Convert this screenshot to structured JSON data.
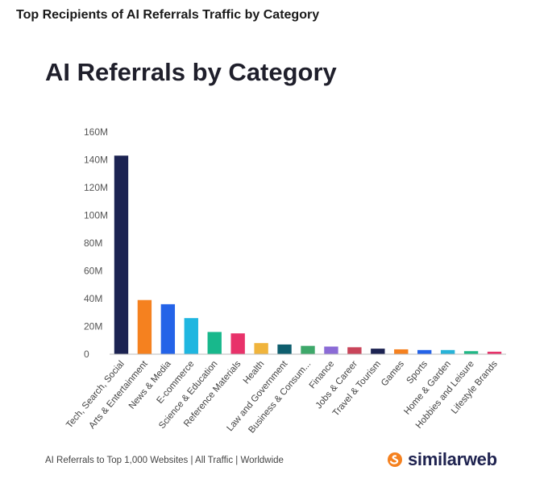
{
  "page": {
    "heading": "Top Recipients of AI Referrals Traffic by Category"
  },
  "chart_data": {
    "type": "bar",
    "title": "AI Referrals by Category",
    "xlabel": "",
    "ylabel": "",
    "ylim": [
      0,
      160
    ],
    "yticks": [
      {
        "value": 0,
        "label": "0"
      },
      {
        "value": 20,
        "label": "20M"
      },
      {
        "value": 40,
        "label": "40M"
      },
      {
        "value": 60,
        "label": "60M"
      },
      {
        "value": 80,
        "label": "80M"
      },
      {
        "value": 100,
        "label": "100M"
      },
      {
        "value": 120,
        "label": "120M"
      },
      {
        "value": 140,
        "label": "140M"
      },
      {
        "value": 160,
        "label": "160M"
      }
    ],
    "grid": false,
    "legend": "none",
    "categories": [
      "Tech, Search, Social",
      "Arts & Entertainment",
      "News & Media",
      "E-commerce",
      "Science & Education",
      "Reference Materials",
      "Health",
      "Law and Government",
      "Business & Consum...",
      "Finance",
      "Jobs & Career",
      "Travel & Tourism",
      "Games",
      "Sports",
      "Home & Garden",
      "Hobbies and Leisure",
      "Lifestyle Brands"
    ],
    "values": [
      143,
      39,
      36,
      26,
      16,
      15,
      8,
      7,
      6,
      5.5,
      5,
      4,
      3.5,
      3,
      3,
      2.2,
      1.8
    ],
    "colors": [
      "#1c2352",
      "#f5811f",
      "#2463e8",
      "#1fb6e0",
      "#18b88c",
      "#e8326a",
      "#f0b43c",
      "#0e5e6e",
      "#3ea86a",
      "#8b6bd6",
      "#c9455a",
      "#1c2352",
      "#f5811f",
      "#2463e8",
      "#27b3d8",
      "#20b886",
      "#e8326a"
    ]
  },
  "footer": {
    "note": "AI Referrals to Top 1,000 Websites | All Traffic | Worldwide",
    "brand": "similarweb",
    "brand_colors": {
      "dark": "#1f2350",
      "accent": "#f5811f"
    }
  }
}
